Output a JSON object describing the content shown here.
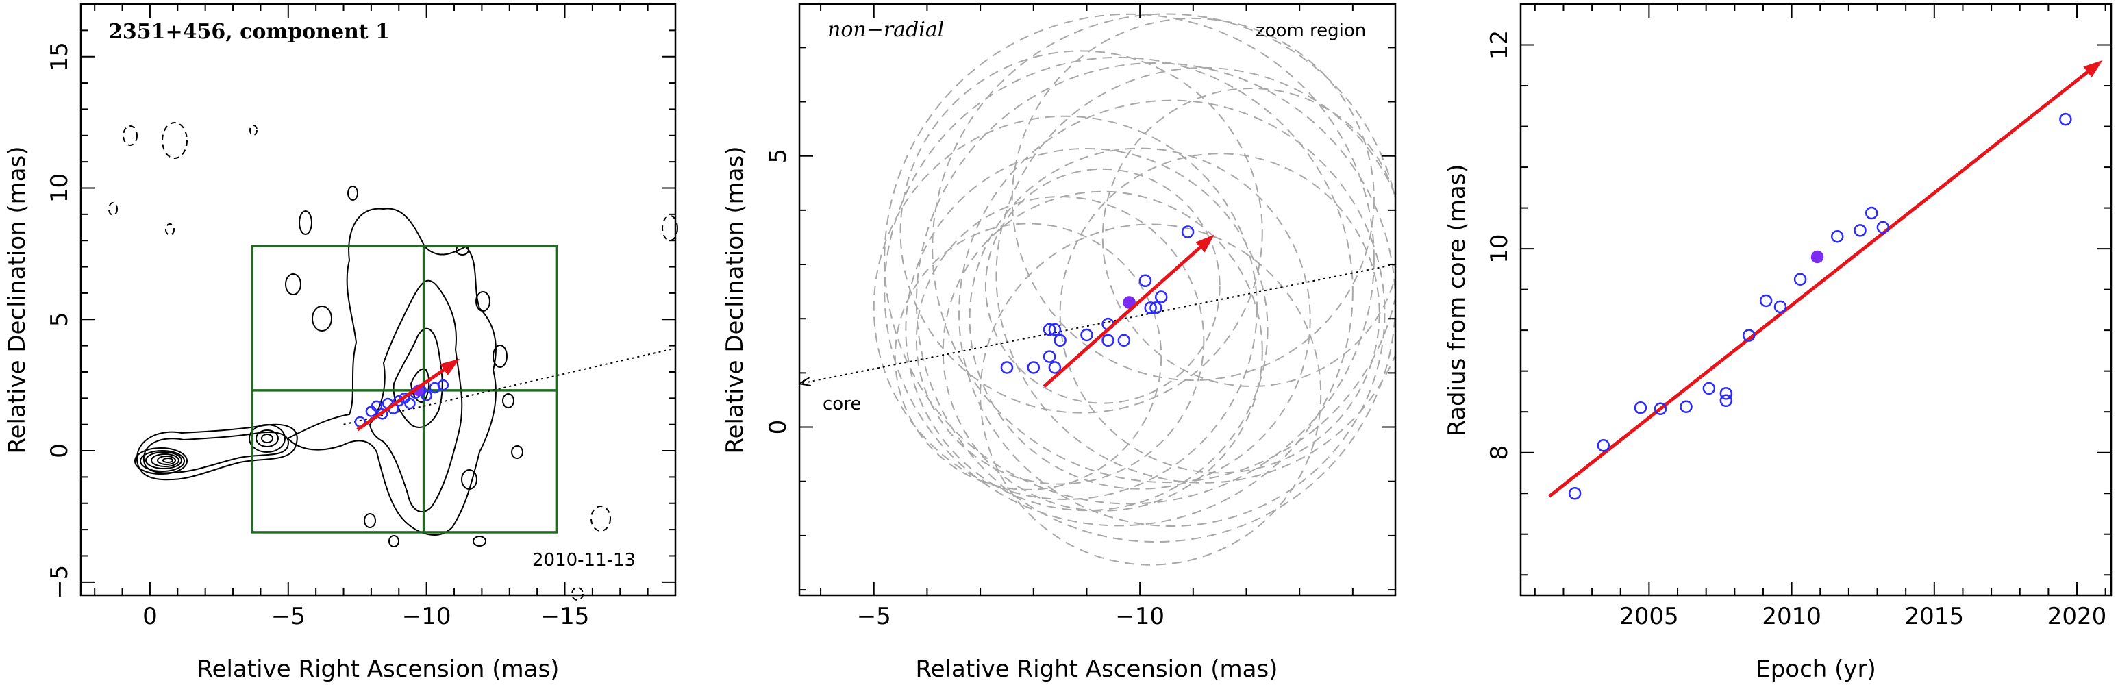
{
  "chart_data": [
    {
      "type": "contour",
      "title": "2351+456, component 1",
      "date_label": "2010-11-13",
      "xlabel": "Relative Right Ascension (mas)",
      "ylabel": "Relative Declination (mas)",
      "xlim": [
        2.5,
        -19
      ],
      "ylim": [
        -5.5,
        17
      ],
      "xticks": [
        0,
        -5,
        -10,
        -15
      ],
      "xtick_labels": [
        "0",
        "−5",
        "−10",
        "−15"
      ],
      "yticks": [
        -5,
        0,
        5,
        10,
        15
      ],
      "ytick_labels": [
        "−5",
        "0",
        "5",
        "10",
        "15"
      ],
      "zoom_region": {
        "x": [
          -3.7,
          -14.7
        ],
        "y": [
          -3.1,
          7.8
        ],
        "divider_x": -9.9,
        "divider_y": 2.3
      },
      "direction_line": {
        "from": [
          -7.0,
          1.0
        ],
        "to": [
          -19,
          3.9
        ]
      },
      "velocity_arrow": {
        "from": [
          -7.5,
          0.8
        ],
        "to": [
          -11.2,
          3.5
        ]
      },
      "points": [
        {
          "x": -7.6,
          "y": 1.1
        },
        {
          "x": -8.0,
          "y": 1.5
        },
        {
          "x": -8.2,
          "y": 1.7
        },
        {
          "x": -8.4,
          "y": 1.4
        },
        {
          "x": -8.6,
          "y": 1.8
        },
        {
          "x": -8.8,
          "y": 1.6
        },
        {
          "x": -9.0,
          "y": 1.9
        },
        {
          "x": -9.2,
          "y": 2.0
        },
        {
          "x": -9.4,
          "y": 1.8
        },
        {
          "x": -9.6,
          "y": 2.2
        },
        {
          "x": -9.8,
          "y": 2.3
        },
        {
          "x": -10.0,
          "y": 2.1
        },
        {
          "x": -10.3,
          "y": 2.4
        },
        {
          "x": -10.6,
          "y": 2.5
        }
      ],
      "filled_point": {
        "x": -9.7,
        "y": 2.3
      }
    },
    {
      "type": "scatter",
      "title": "non−radial",
      "annotation": "zoom region",
      "core_label": "core",
      "xlabel": "Relative Right Ascension (mas)",
      "ylabel": "Relative Declination (mas)",
      "xlim": [
        -3.6,
        -14.8
      ],
      "ylim": [
        -3.1,
        7.8
      ],
      "xticks": [
        -5,
        -10
      ],
      "xtick_labels": [
        "−5",
        "−10"
      ],
      "yticks": [
        0,
        5
      ],
      "ytick_labels": [
        "0",
        "5"
      ],
      "points": [
        {
          "x": -7.5,
          "y": 1.1
        },
        {
          "x": -8.0,
          "y": 1.1
        },
        {
          "x": -8.3,
          "y": 1.8
        },
        {
          "x": -8.4,
          "y": 1.8
        },
        {
          "x": -8.3,
          "y": 1.3
        },
        {
          "x": -8.4,
          "y": 1.1
        },
        {
          "x": -8.5,
          "y": 1.6
        },
        {
          "x": -9.0,
          "y": 1.7
        },
        {
          "x": -9.4,
          "y": 1.9
        },
        {
          "x": -9.4,
          "y": 1.6
        },
        {
          "x": -9.7,
          "y": 1.6
        },
        {
          "x": -10.1,
          "y": 2.7
        },
        {
          "x": -10.2,
          "y": 2.2
        },
        {
          "x": -10.3,
          "y": 2.2
        },
        {
          "x": -10.4,
          "y": 2.4
        },
        {
          "x": -10.9,
          "y": 3.6
        }
      ],
      "filled_point": {
        "x": -9.8,
        "y": 2.3
      },
      "circles": [
        {
          "cx": -9.6,
          "cy": 2.5,
          "r": 4.4
        },
        {
          "cx": -10.3,
          "cy": 2.3,
          "r": 4.5
        },
        {
          "cx": -10.6,
          "cy": 2.1,
          "r": 4.0
        },
        {
          "cx": -9.8,
          "cy": 3.1,
          "r": 4.6
        },
        {
          "cx": -10.5,
          "cy": 3.3,
          "r": 4.4
        },
        {
          "cx": -11.2,
          "cy": 2.8,
          "r": 3.9
        },
        {
          "cx": -9.0,
          "cy": 1.8,
          "r": 3.4
        },
        {
          "cx": -8.6,
          "cy": 2.2,
          "r": 3.6
        },
        {
          "cx": -8.5,
          "cy": 1.6,
          "r": 2.7
        },
        {
          "cx": -9.3,
          "cy": 1.4,
          "r": 3.0
        },
        {
          "cx": -10.0,
          "cy": 2.0,
          "r": 3.2
        },
        {
          "cx": -11.5,
          "cy": 2.1,
          "r": 3.0
        },
        {
          "cx": -8.9,
          "cy": 3.6,
          "r": 3.4
        },
        {
          "cx": -10.2,
          "cy": 0.6,
          "r": 3.2
        },
        {
          "cx": -7.9,
          "cy": 1.3,
          "r": 2.5
        },
        {
          "cx": -12.1,
          "cy": 3.5,
          "r": 2.8
        },
        {
          "cx": -11.0,
          "cy": 4.2,
          "r": 3.4
        },
        {
          "cx": -9.3,
          "cy": 2.6,
          "r": 2.2
        }
      ],
      "direction_line": {
        "from": [
          -14.8,
          3.0
        ],
        "to": [
          -3.6,
          0.8
        ]
      },
      "velocity_arrow": {
        "from": [
          -8.2,
          0.75
        ],
        "to": [
          -11.4,
          3.55
        ]
      }
    },
    {
      "type": "scatter",
      "xlabel": "Epoch (yr)",
      "ylabel": "Radius from core (mas)",
      "xlim": [
        2000.5,
        2021.2
      ],
      "ylim": [
        6.6,
        12.4
      ],
      "xticks": [
        2005,
        2010,
        2015,
        2020
      ],
      "xtick_labels": [
        "2005",
        "2010",
        "2015",
        "2020"
      ],
      "yticks": [
        8,
        10,
        12
      ],
      "ytick_labels": [
        "8",
        "10",
        "12"
      ],
      "points": [
        {
          "x": 2002.4,
          "y": 7.6
        },
        {
          "x": 2003.4,
          "y": 8.07
        },
        {
          "x": 2004.7,
          "y": 8.44
        },
        {
          "x": 2005.4,
          "y": 8.43
        },
        {
          "x": 2006.3,
          "y": 8.45
        },
        {
          "x": 2007.1,
          "y": 8.63
        },
        {
          "x": 2007.7,
          "y": 8.51
        },
        {
          "x": 2007.7,
          "y": 8.58
        },
        {
          "x": 2008.5,
          "y": 9.15
        },
        {
          "x": 2009.1,
          "y": 9.49
        },
        {
          "x": 2009.6,
          "y": 9.43
        },
        {
          "x": 2010.3,
          "y": 9.7
        },
        {
          "x": 2011.6,
          "y": 10.12
        },
        {
          "x": 2012.4,
          "y": 10.18
        },
        {
          "x": 2012.8,
          "y": 10.35
        },
        {
          "x": 2013.2,
          "y": 10.21
        },
        {
          "x": 2019.6,
          "y": 11.27
        }
      ],
      "filled_point": {
        "x": 2010.9,
        "y": 9.92
      },
      "fit_arrow": {
        "from": [
          2001.5,
          7.57
        ],
        "to": [
          2020.9,
          11.85
        ]
      }
    }
  ]
}
